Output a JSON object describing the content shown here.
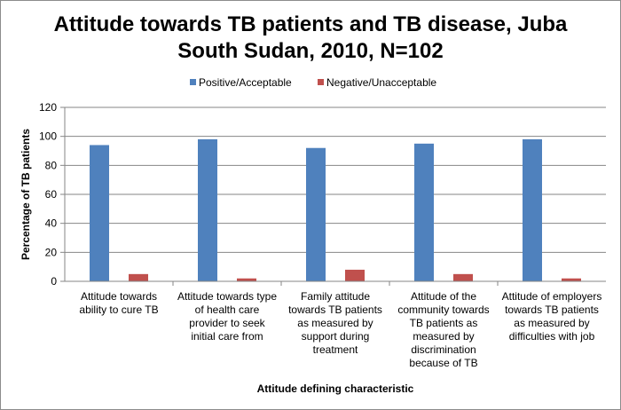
{
  "chart_data": {
    "type": "bar",
    "title_lines": [
      "Attitude towards TB patients and TB disease, Juba",
      "South Sudan, 2010, N=102"
    ],
    "xlabel": "Attitude defining characteristic",
    "ylabel": "Percentage of TB patients",
    "ylim": [
      0,
      120
    ],
    "yticks": [
      0,
      20,
      40,
      60,
      80,
      100,
      120
    ],
    "grid": true,
    "legend_position": "top",
    "categories": [
      [
        "Attitude towards",
        "ability to cure TB"
      ],
      [
        "Attitude towards type",
        "of health care",
        "provider to seek",
        "initial care from"
      ],
      [
        "Family attitude",
        "towards TB patients",
        "as measured by",
        "support during",
        "treatment"
      ],
      [
        "Attitude of the",
        "community towards",
        "TB patients as",
        "measured by",
        "discrimination",
        "because of TB"
      ],
      [
        "Attitude of employers",
        "towards TB patients",
        "as measured by",
        "difficulties with job"
      ]
    ],
    "series": [
      {
        "name": "Positive/Acceptable",
        "color": "#4f81bd",
        "values": [
          94,
          98,
          92,
          95,
          98
        ]
      },
      {
        "name": "Negative/Unacceptable",
        "color": "#c0504d",
        "values": [
          5,
          2,
          8,
          5,
          2
        ]
      }
    ]
  }
}
